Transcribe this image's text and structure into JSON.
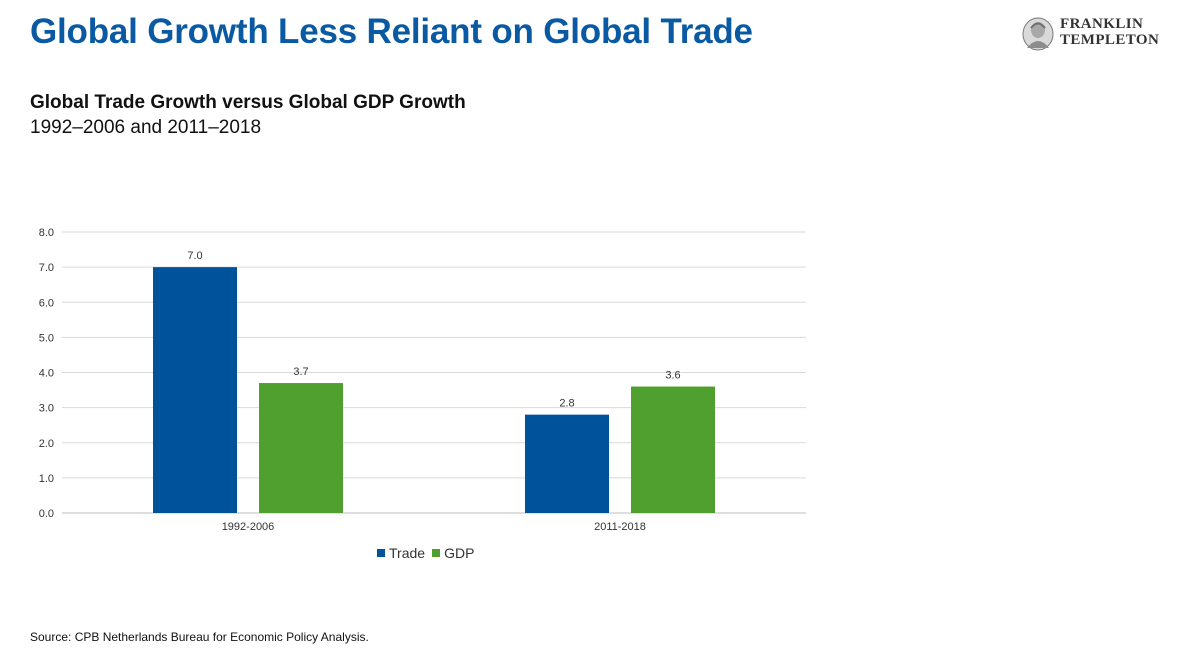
{
  "slide": {
    "headline": "Global Growth Less Reliant on Global Trade",
    "logo": {
      "line1": "FRANKLIN",
      "line2": "TEMPLETON",
      "icon": "franklin-portrait-icon"
    },
    "source": "Source: CPB Netherlands Bureau for Economic Policy Analysis."
  },
  "chart_data": {
    "type": "bar",
    "title": "Global Trade Growth versus Global GDP Growth",
    "subtitle": "1992–2006 and 2011–2018",
    "categories": [
      "1992-2006",
      "2011-2018"
    ],
    "series": [
      {
        "name": "Trade",
        "values": [
          7.0,
          2.8
        ],
        "color": "#00539b"
      },
      {
        "name": "GDP",
        "values": [
          3.7,
          3.6
        ],
        "color": "#4fa02e"
      }
    ],
    "ylim": [
      0,
      8
    ],
    "yticks": [
      "0.0",
      "1.0",
      "2.0",
      "3.0",
      "4.0",
      "5.0",
      "6.0",
      "7.0",
      "8.0"
    ],
    "data_labels": [
      [
        "7.0",
        "2.8"
      ],
      [
        "3.7",
        "3.6"
      ]
    ],
    "xlabel": "",
    "ylabel": "",
    "grid": true,
    "legend": "bottom"
  }
}
